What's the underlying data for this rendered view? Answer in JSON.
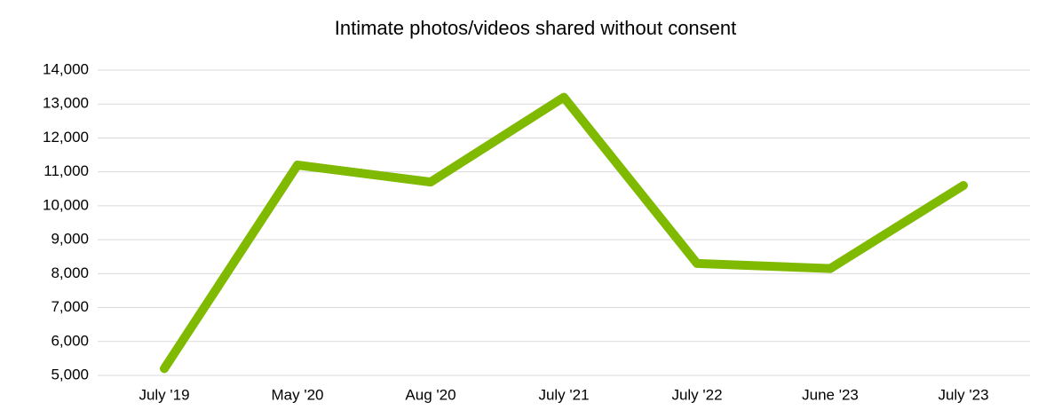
{
  "chart_data": {
    "type": "line",
    "title": "Intimate photos/videos shared without consent",
    "categories": [
      "July '19",
      "May '20",
      "Aug '20",
      "July '21",
      "July '22",
      "June '23",
      "July '23"
    ],
    "values": [
      5200,
      11200,
      10700,
      13200,
      8300,
      8150,
      10600
    ],
    "color": "#7fba00",
    "ylim": [
      5000,
      14000
    ],
    "yticks": [
      {
        "value": 5000,
        "label": "5,000"
      },
      {
        "value": 6000,
        "label": "6,000"
      },
      {
        "value": 7000,
        "label": "7,000"
      },
      {
        "value": 8000,
        "label": "8,000"
      },
      {
        "value": 9000,
        "label": "9,000"
      },
      {
        "value": 10000,
        "label": "10,000"
      },
      {
        "value": 11000,
        "label": "11,000"
      },
      {
        "value": 12000,
        "label": "12,000"
      },
      {
        "value": 13000,
        "label": "13,000"
      },
      {
        "value": 14000,
        "label": "14,000"
      }
    ],
    "grid": true
  }
}
